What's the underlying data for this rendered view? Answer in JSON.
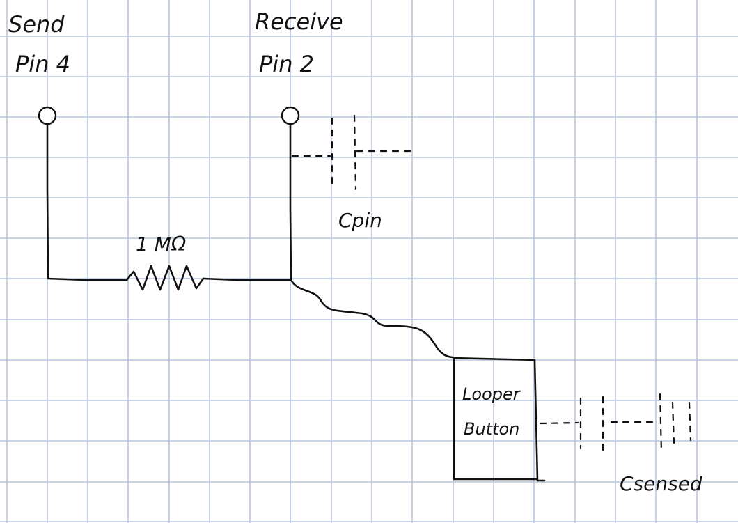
{
  "labels": {
    "send_line1": "Send",
    "send_line2": "Pin 4",
    "receive_line1": "Receive",
    "receive_line2": "Pin 2",
    "resistor": "1 MΩ",
    "c_pin": "Cpin",
    "button_line1": "Looper",
    "button_line2": "Button",
    "c_sensed": "Csensed"
  },
  "colors": {
    "grid": "#b7c6de",
    "ink": "#111111",
    "paper": "#ffffff"
  }
}
